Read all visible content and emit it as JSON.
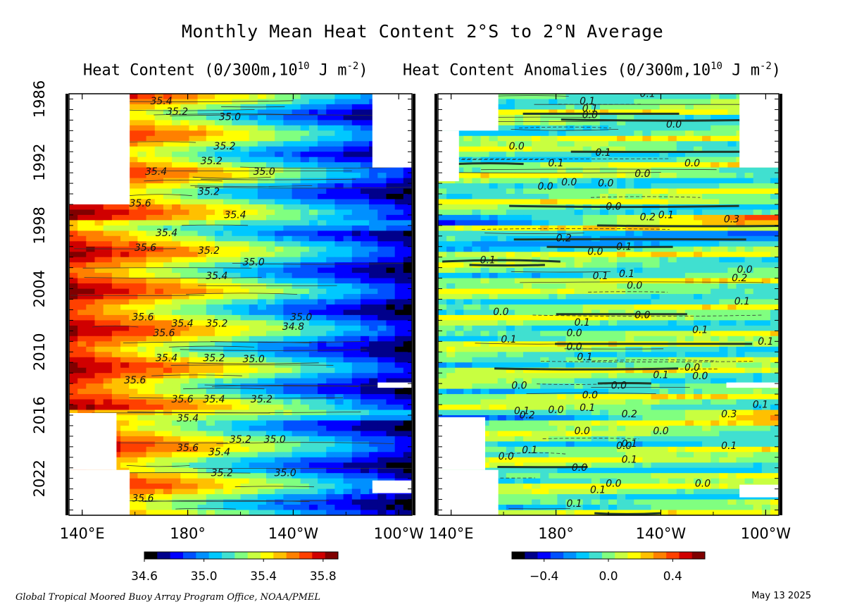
{
  "title": "Monthly Mean Heat Content  2°S to 2°N Average",
  "footer": {
    "credit": "Global Tropical Moored Buoy Array Program Office, NOAA/PMEL",
    "date": "May 13 2025"
  },
  "chart_data": [
    {
      "type": "heatmap",
      "title": "Heat Content (0/300m,10^10 J m^-2)",
      "title_main": "Heat Content (0/300m,10",
      "title_exp": "10",
      "title_tail": " J m",
      "title_exp2": "-2",
      "title_close": ")",
      "x_ticks": [
        "140°E",
        "180°",
        "140°W",
        "100°W"
      ],
      "y_ticks": [
        "1986",
        "1992",
        "1998",
        "2004",
        "2010",
        "2016",
        "2022"
      ],
      "xlim_deg_east": [
        135,
        265
      ],
      "ylim_years": [
        1985.5,
        2025.5
      ],
      "colorbar": {
        "ticks": [
          "34.6",
          "35.0",
          "35.4",
          "35.8"
        ],
        "tick_values": [
          34.6,
          35.0,
          35.4,
          35.8
        ],
        "range": [
          34.6,
          35.9
        ],
        "colors": [
          "#000000",
          "#00008b",
          "#0000ff",
          "#0050ff",
          "#0090ff",
          "#00c8ff",
          "#40e0d0",
          "#80ff80",
          "#c8ff40",
          "#ffff00",
          "#ffc000",
          "#ff8000",
          "#ff4000",
          "#d00000",
          "#800000"
        ]
      },
      "contour_labels": [
        {
          "text": "35.4",
          "year": 1986.5,
          "lon": 170
        },
        {
          "text": "35.2",
          "year": 1987.5,
          "lon": 176
        },
        {
          "text": "35.0",
          "year": 1988.0,
          "lon": 196
        },
        {
          "text": "35.2",
          "year": 1990.8,
          "lon": 194
        },
        {
          "text": "35.2",
          "year": 1992.2,
          "lon": 189
        },
        {
          "text": "35.4",
          "year": 1993.2,
          "lon": 168
        },
        {
          "text": "35.0",
          "year": 1993.2,
          "lon": 209
        },
        {
          "text": "35.2",
          "year": 1995.1,
          "lon": 188
        },
        {
          "text": "35.6",
          "year": 1996.2,
          "lon": 162
        },
        {
          "text": "35.4",
          "year": 1997.3,
          "lon": 198
        },
        {
          "text": "35.4",
          "year": 1999.0,
          "lon": 172
        },
        {
          "text": "35.6",
          "year": 2000.4,
          "lon": 164
        },
        {
          "text": "35.2",
          "year": 2000.7,
          "lon": 188
        },
        {
          "text": "35.0",
          "year": 2001.8,
          "lon": 205
        },
        {
          "text": "35.4",
          "year": 2003.1,
          "lon": 191
        },
        {
          "text": "35.6",
          "year": 2007.0,
          "lon": 163
        },
        {
          "text": "35.4",
          "year": 2007.6,
          "lon": 178
        },
        {
          "text": "35.2",
          "year": 2007.6,
          "lon": 191
        },
        {
          "text": "35.0",
          "year": 2007.0,
          "lon": 223
        },
        {
          "text": "34.8",
          "year": 2007.9,
          "lon": 220
        },
        {
          "text": "35.6",
          "year": 2008.5,
          "lon": 171
        },
        {
          "text": "35.4",
          "year": 2010.9,
          "lon": 172
        },
        {
          "text": "35.2",
          "year": 2010.9,
          "lon": 190
        },
        {
          "text": "35.0",
          "year": 2011.0,
          "lon": 205
        },
        {
          "text": "35.6",
          "year": 2013.0,
          "lon": 160
        },
        {
          "text": "35.6",
          "year": 2014.8,
          "lon": 178
        },
        {
          "text": "35.4",
          "year": 2014.8,
          "lon": 190
        },
        {
          "text": "35.2",
          "year": 2014.8,
          "lon": 208
        },
        {
          "text": "35.4",
          "year": 2016.6,
          "lon": 180
        },
        {
          "text": "35.2",
          "year": 2018.6,
          "lon": 200
        },
        {
          "text": "35.0",
          "year": 2018.6,
          "lon": 213
        },
        {
          "text": "35.6",
          "year": 2019.4,
          "lon": 180
        },
        {
          "text": "35.4",
          "year": 2019.8,
          "lon": 192
        },
        {
          "text": "35.2",
          "year": 2021.8,
          "lon": 193
        },
        {
          "text": "35.0",
          "year": 2021.8,
          "lon": 217
        },
        {
          "text": "35.6",
          "year": 2024.2,
          "lon": 163
        }
      ]
    },
    {
      "type": "heatmap",
      "title": "Heat Content Anomalies (0/300m,10^10 J m^-2)",
      "title_main": "Heat Content Anomalies (0/300m,10",
      "title_exp": "10",
      "title_tail": " J m",
      "title_exp2": "-2",
      "title_close": ")",
      "x_ticks": [
        "140°E",
        "180°",
        "140°W",
        "100°W"
      ],
      "xlim_deg_east": [
        135,
        265
      ],
      "ylim_years": [
        1985.5,
        2025.5
      ],
      "colorbar": {
        "ticks": [
          "−0.4",
          "0.0",
          "0.4"
        ],
        "tick_values": [
          -0.4,
          0.0,
          0.4
        ],
        "range": [
          -0.6,
          0.6
        ],
        "colors": [
          "#000000",
          "#00008b",
          "#0000ff",
          "#0050ff",
          "#0090ff",
          "#00c8ff",
          "#40e0d0",
          "#80ff80",
          "#c8ff40",
          "#ffff00",
          "#ffc000",
          "#ff8000",
          "#ff4000",
          "#d00000",
          "#800000"
        ]
      },
      "contour_labels": [
        {
          "text": "0.1",
          "year": 1985.8,
          "lon": 215
        },
        {
          "text": "0.1",
          "year": 1986.5,
          "lon": 192
        },
        {
          "text": "0.1",
          "year": 1987.2,
          "lon": 193
        },
        {
          "text": "0.0",
          "year": 1987.8,
          "lon": 193
        },
        {
          "text": "0.0",
          "year": 1988.7,
          "lon": 225
        },
        {
          "text": "0.0",
          "year": 1990.8,
          "lon": 165
        },
        {
          "text": "0.1",
          "year": 1991.4,
          "lon": 198
        },
        {
          "text": "0.1",
          "year": 1992.4,
          "lon": 180
        },
        {
          "text": "0.0",
          "year": 1992.4,
          "lon": 232
        },
        {
          "text": "0.0",
          "year": 1993.4,
          "lon": 213
        },
        {
          "text": "0.0",
          "year": 1994.3,
          "lon": 199
        },
        {
          "text": "0.0",
          "year": 1994.2,
          "lon": 185
        },
        {
          "text": "0.0",
          "year": 1994.6,
          "lon": 176
        },
        {
          "text": "0.0",
          "year": 1996.5,
          "lon": 202
        },
        {
          "text": "0.2",
          "year": 1997.5,
          "lon": 215
        },
        {
          "text": "0.1",
          "year": 1997.3,
          "lon": 222
        },
        {
          "text": "0.3",
          "year": 1997.7,
          "lon": 247
        },
        {
          "text": "0.2",
          "year": 1999.5,
          "lon": 183
        },
        {
          "text": "0.1",
          "year": 2000.3,
          "lon": 206
        },
        {
          "text": "0.0",
          "year": 2000.8,
          "lon": 195
        },
        {
          "text": "0.1",
          "year": 2001.6,
          "lon": 154
        },
        {
          "text": "0.0",
          "year": 2002.5,
          "lon": 252
        },
        {
          "text": "0.1",
          "year": 2003.1,
          "lon": 197
        },
        {
          "text": "0.1",
          "year": 2002.9,
          "lon": 207
        },
        {
          "text": "0.2",
          "year": 2003.3,
          "lon": 250
        },
        {
          "text": "0.0",
          "year": 2004.0,
          "lon": 210
        },
        {
          "text": "0.1",
          "year": 2005.5,
          "lon": 251
        },
        {
          "text": "0.0",
          "year": 2006.5,
          "lon": 159
        },
        {
          "text": "0.0",
          "year": 2006.8,
          "lon": 213
        },
        {
          "text": "0.1",
          "year": 2007.5,
          "lon": 190
        },
        {
          "text": "0.0",
          "year": 2008.5,
          "lon": 187
        },
        {
          "text": "0.1",
          "year": 2008.2,
          "lon": 235
        },
        {
          "text": "0.1",
          "year": 2009.1,
          "lon": 162
        },
        {
          "text": "0.1",
          "year": 2009.3,
          "lon": 260
        },
        {
          "text": "0.0",
          "year": 2009.8,
          "lon": 187
        },
        {
          "text": "0.1",
          "year": 2010.8,
          "lon": 191
        },
        {
          "text": "0.0",
          "year": 2011.8,
          "lon": 232
        },
        {
          "text": "0.0",
          "year": 2012.6,
          "lon": 235
        },
        {
          "text": "0.1",
          "year": 2012.5,
          "lon": 220
        },
        {
          "text": "0.0",
          "year": 2013.5,
          "lon": 204
        },
        {
          "text": "0.0",
          "year": 2013.5,
          "lon": 166
        },
        {
          "text": "0.0",
          "year": 2014.4,
          "lon": 193
        },
        {
          "text": "0.1",
          "year": 2015.6,
          "lon": 192
        },
        {
          "text": "0.1",
          "year": 2015.9,
          "lon": 167
        },
        {
          "text": "0.0",
          "year": 2015.8,
          "lon": 180
        },
        {
          "text": "0.2",
          "year": 2016.3,
          "lon": 169
        },
        {
          "text": "0.2",
          "year": 2016.2,
          "lon": 208
        },
        {
          "text": "0.3",
          "year": 2016.2,
          "lon": 246
        },
        {
          "text": "0.1",
          "year": 2015.3,
          "lon": 258
        },
        {
          "text": "0.0",
          "year": 2017.8,
          "lon": 190
        },
        {
          "text": "0.0",
          "year": 2017.8,
          "lon": 220
        },
        {
          "text": "0.1",
          "year": 2019.0,
          "lon": 208
        },
        {
          "text": "0.0",
          "year": 2019.2,
          "lon": 206
        },
        {
          "text": "0.1",
          "year": 2019.2,
          "lon": 246
        },
        {
          "text": "0.0",
          "year": 2020.2,
          "lon": 161
        },
        {
          "text": "0.1",
          "year": 2019.6,
          "lon": 170
        },
        {
          "text": "0.1",
          "year": 2020.5,
          "lon": 208
        },
        {
          "text": "0.0",
          "year": 2021.3,
          "lon": 189
        },
        {
          "text": "0.0",
          "year": 2022.8,
          "lon": 202
        },
        {
          "text": "0.0",
          "year": 2022.8,
          "lon": 236
        },
        {
          "text": "0.1",
          "year": 2023.4,
          "lon": 196
        },
        {
          "text": "0.1",
          "year": 2024.7,
          "lon": 187
        }
      ]
    }
  ]
}
